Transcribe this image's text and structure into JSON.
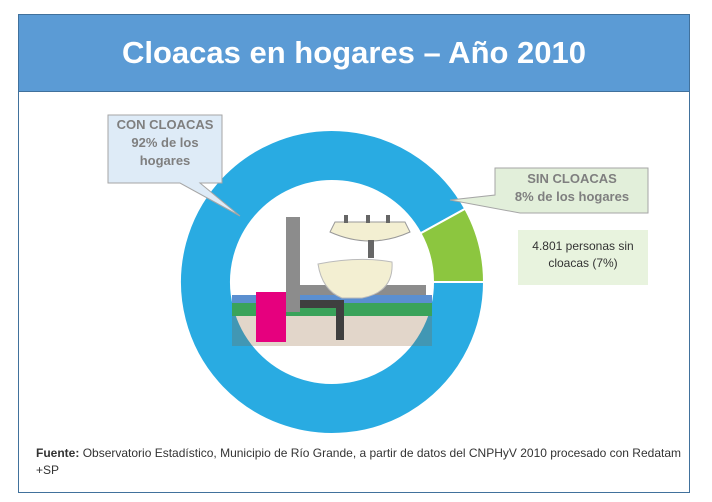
{
  "chart_data": {
    "type": "donut",
    "title": "Cloacas en hogares – Año 2010",
    "categories": [
      "CON CLOACAS",
      "SIN CLOACAS"
    ],
    "values": [
      92,
      8
    ],
    "value_labels": [
      "92% de los hogares",
      "8% de los hogares"
    ],
    "colors": [
      "#29abe2",
      "#8cc63f"
    ],
    "annotation": "4.801 personas sin cloacas (7%)",
    "source_label": "Fuente:",
    "source": "Observatorio Estadístico, Municipio de Río Grande, a partir de datos del CNPHyV 2010 procesado con Redatam +SP"
  }
}
